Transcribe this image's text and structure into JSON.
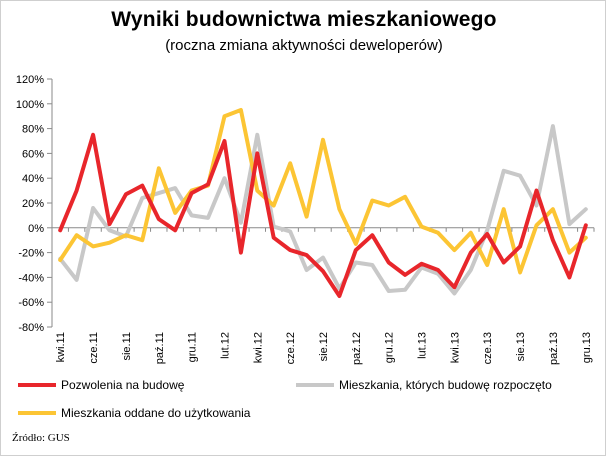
{
  "title": "Wyniki budownictwa mieszkaniowego",
  "subtitle": "(roczna zmiana aktywności deweloperów)",
  "source": "Źródło: GUS",
  "chart_data": {
    "type": "line",
    "title": "Wyniki budownictwa mieszkaniowego",
    "subtitle": "(roczna zmiana aktywności deweloperów)",
    "xlabel": "",
    "ylabel": "",
    "ylim": [
      -80,
      120
    ],
    "ytick_step": 20,
    "y_unit": "%",
    "grid": false,
    "legend_placement": "bottom",
    "x_tick_labels": [
      "kwi.11",
      "cze.11",
      "sie.11",
      "paź.11",
      "gru.11",
      "lut.12",
      "kwi.12",
      "cze.12",
      "sie.12",
      "paź.12",
      "gru.12",
      "lut.13",
      "kwi.13",
      "cze.13",
      "sie.13",
      "paź.13",
      "gru.13"
    ],
    "categories": [
      "kwi.11",
      "maj.11",
      "cze.11",
      "lip.11",
      "sie.11",
      "wrz.11",
      "paź.11",
      "lis.11",
      "gru.11",
      "sty.12",
      "lut.12",
      "mar.12",
      "kwi.12",
      "maj.12",
      "cze.12",
      "lip.12",
      "sie.12",
      "wrz.12",
      "paź.12",
      "lis.12",
      "gru.12",
      "sty.13",
      "lut.13",
      "mar.13",
      "kwi.13",
      "maj.13",
      "cze.13",
      "lip.13",
      "sie.13",
      "wrz.13",
      "paź.13",
      "lis.13",
      "gru.13"
    ],
    "series": [
      {
        "name": "Pozwolenia na budowę",
        "color": "#e8262b",
        "values": [
          -2,
          30,
          75,
          3,
          27,
          34,
          7,
          -2,
          28,
          35,
          70,
          -20,
          60,
          -8,
          -18,
          -22,
          -35,
          -55,
          -18,
          -6,
          -28,
          -38,
          -29,
          -34,
          -48,
          -20,
          -5,
          -28,
          -15,
          30,
          -10,
          -40,
          2
        ]
      },
      {
        "name": "Mieszkania, których budowę rozpoczęto",
        "color": "#c8c8c8",
        "values": [
          -25,
          -42,
          16,
          -2,
          -7,
          24,
          28,
          32,
          10,
          8,
          40,
          4,
          75,
          1,
          -3,
          -34,
          -24,
          -49,
          -28,
          -30,
          -51,
          -50,
          -32,
          -37,
          -53,
          -34,
          -2,
          46,
          42,
          18,
          82,
          3,
          15
        ]
      },
      {
        "name": "Mieszkania oddane do użytkowania",
        "color": "#fcc534",
        "values": [
          -26,
          -6,
          -15,
          -12,
          -6,
          -10,
          48,
          12,
          30,
          34,
          90,
          95,
          30,
          18,
          52,
          9,
          71,
          15,
          -13,
          22,
          18,
          25,
          1,
          -4,
          -18,
          -4,
          -30,
          15,
          -36,
          2,
          15,
          -20,
          -8
        ]
      }
    ]
  }
}
